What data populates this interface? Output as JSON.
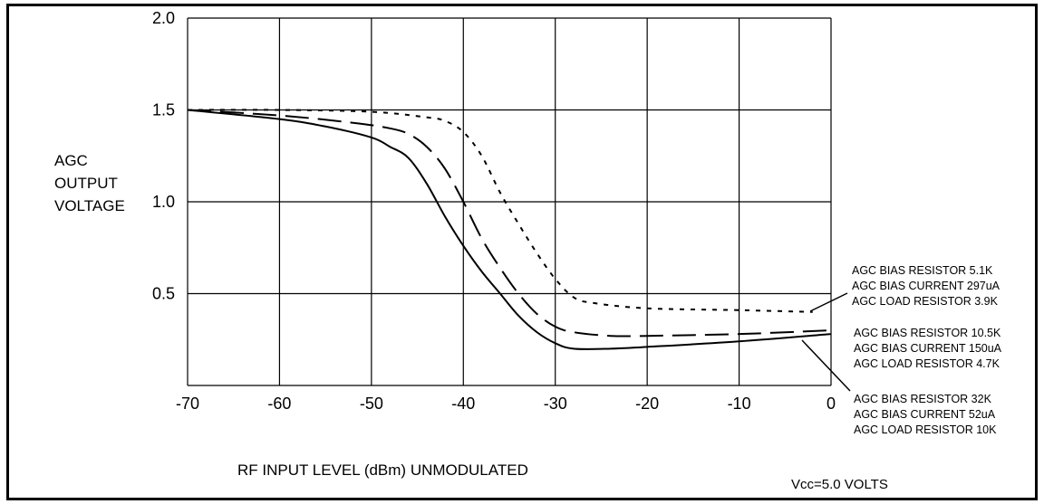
{
  "chart_data": {
    "type": "line",
    "title": "",
    "ylabel": [
      "AGC",
      "OUTPUT",
      "VOLTAGE"
    ],
    "xlabel": "RF INPUT LEVEL (dBm) UNMODULATED",
    "xlim": [
      -70,
      0
    ],
    "ylim": [
      0,
      2.0
    ],
    "x_ticks": [
      "-70",
      "-60",
      "-50",
      "-40",
      "-30",
      "-20",
      "-10",
      "0"
    ],
    "x_tick_values": [
      -70,
      -60,
      -50,
      -40,
      -30,
      -20,
      -10,
      0
    ],
    "y_ticks": [
      "2.0",
      "1.5",
      "1.0",
      "0.5"
    ],
    "y_tick_values": [
      2.0,
      1.5,
      1.0,
      0.5
    ],
    "grid": true,
    "note": "Vcc=5.0 VOLTS",
    "series": [
      {
        "dash": "short-dash",
        "label_lines": [
          "AGC BIAS RESISTOR 5.1K",
          "AGC BIAS CURRENT 297uA",
          "AGC LOAD RESISTOR 3.9K"
        ],
        "x": [
          -70,
          -60,
          -50,
          -44,
          -42,
          -40,
          -38,
          -36,
          -34,
          -32,
          -30,
          -28,
          -26,
          -20,
          -10,
          -2
        ],
        "y": [
          1.5,
          1.5,
          1.49,
          1.46,
          1.44,
          1.38,
          1.25,
          1.05,
          0.88,
          0.72,
          0.58,
          0.48,
          0.45,
          0.42,
          0.41,
          0.4
        ]
      },
      {
        "dash": "long-dash",
        "label_lines": [
          "AGC BIAS RESISTOR 10.5K",
          "AGC BIAS CURRENT 150uA",
          "AGC LOAD RESISTOR 4.7K"
        ],
        "x": [
          -70,
          -60,
          -52,
          -48,
          -46,
          -44,
          -42,
          -40,
          -38,
          -36,
          -34,
          -32,
          -30,
          -28,
          -24,
          -20,
          -10,
          0
        ],
        "y": [
          1.5,
          1.47,
          1.43,
          1.4,
          1.37,
          1.3,
          1.18,
          1.0,
          0.8,
          0.64,
          0.5,
          0.39,
          0.32,
          0.29,
          0.27,
          0.27,
          0.28,
          0.3
        ]
      },
      {
        "dash": "solid",
        "label_lines": [
          "AGC BIAS RESISTOR 32K",
          "AGC BIAS CURRENT 52uA",
          "AGC LOAD RESISTOR 10K"
        ],
        "x": [
          -70,
          -60,
          -55,
          -50,
          -48,
          -46,
          -44,
          -42,
          -40,
          -38,
          -36,
          -34,
          -32,
          -30,
          -28,
          -24,
          -20,
          -10,
          0
        ],
        "y": [
          1.5,
          1.45,
          1.41,
          1.35,
          1.3,
          1.24,
          1.1,
          0.92,
          0.76,
          0.62,
          0.5,
          0.38,
          0.29,
          0.23,
          0.2,
          0.2,
          0.21,
          0.24,
          0.28
        ]
      }
    ]
  }
}
